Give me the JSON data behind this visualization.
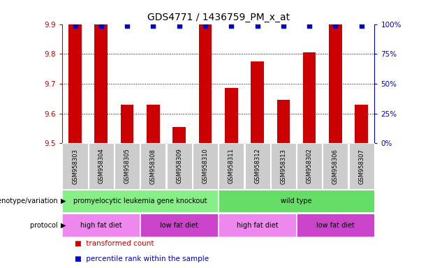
{
  "title": "GDS4771 / 1436759_PM_x_at",
  "samples": [
    "GSM958303",
    "GSM958304",
    "GSM958305",
    "GSM958308",
    "GSM958309",
    "GSM958310",
    "GSM958311",
    "GSM958312",
    "GSM958313",
    "GSM958302",
    "GSM958306",
    "GSM958307"
  ],
  "bar_values": [
    9.9,
    9.9,
    9.63,
    9.63,
    9.555,
    9.9,
    9.685,
    9.775,
    9.645,
    9.805,
    9.9,
    9.63
  ],
  "ymin": 9.5,
  "ymax": 9.9,
  "yticks": [
    9.5,
    9.6,
    9.7,
    9.8,
    9.9
  ],
  "right_yticks": [
    0,
    25,
    50,
    75,
    100
  ],
  "bar_color": "#cc0000",
  "percentile_color": "#0000cc",
  "genotype_groups": [
    {
      "label": "promyelocytic leukemia gene knockout",
      "start": 0,
      "end": 6,
      "color": "#88ee88"
    },
    {
      "label": "wild type",
      "start": 6,
      "end": 12,
      "color": "#66dd66"
    }
  ],
  "protocol_groups": [
    {
      "label": "high fat diet",
      "start": 0,
      "end": 3,
      "color": "#ee88ee"
    },
    {
      "label": "low fat diet",
      "start": 3,
      "end": 6,
      "color": "#cc44cc"
    },
    {
      "label": "high fat diet",
      "start": 6,
      "end": 9,
      "color": "#ee88ee"
    },
    {
      "label": "low fat diet",
      "start": 9,
      "end": 12,
      "color": "#cc44cc"
    }
  ],
  "genotype_label": "genotype/variation",
  "protocol_label": "protocol",
  "legend_bar_label": "transformed count",
  "legend_pct_label": "percentile rank within the sample",
  "background_color": "#ffffff",
  "sample_bg_color": "#cccccc",
  "grid_color": "#000000",
  "grid_linestyle": ":",
  "grid_linewidth": 0.7,
  "left_spine_color": "#cc0000",
  "right_spine_color": "#0000cc",
  "bar_width": 0.5,
  "percentile_marker_size": 4.0,
  "title_fontsize": 10,
  "ytick_fontsize": 7.5,
  "sample_fontsize": 6.0,
  "annot_fontsize": 7.0,
  "legend_fontsize": 7.5
}
